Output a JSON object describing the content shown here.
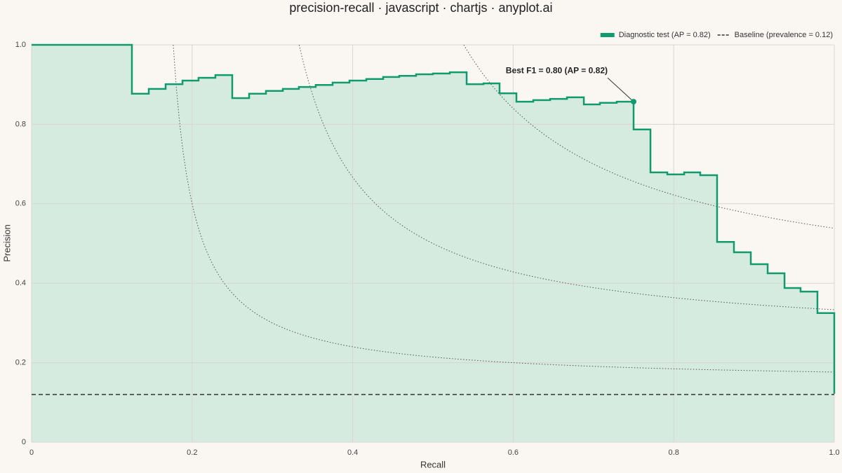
{
  "chart_data": {
    "type": "step",
    "title": "precision-recall · javascript · chartjs · anyplot.ai",
    "x_label": "Recall",
    "y_label": "Precision",
    "x": [
      0,
      0.125,
      0.146,
      0.167,
      0.188,
      0.208,
      0.229,
      0.25,
      0.271,
      0.292,
      0.313,
      0.333,
      0.354,
      0.375,
      0.396,
      0.417,
      0.438,
      0.458,
      0.479,
      0.5,
      0.521,
      0.542,
      0.563,
      0.583,
      0.604,
      0.625,
      0.646,
      0.667,
      0.688,
      0.708,
      0.729,
      0.75,
      0.771,
      0.792,
      0.813,
      0.833,
      0.854,
      0.875,
      0.896,
      0.917,
      0.938,
      0.958,
      0.979,
      1.0
    ],
    "series": [
      {
        "name": "Diagnostic test (AP = 0.82)",
        "color": "#129a6f",
        "fill": "#d5ebdf",
        "values": [
          1.0,
          0.877,
          0.889,
          0.901,
          0.91,
          0.917,
          0.924,
          0.866,
          0.877,
          0.884,
          0.889,
          0.894,
          0.899,
          0.905,
          0.91,
          0.914,
          0.919,
          0.922,
          0.926,
          0.928,
          0.931,
          0.901,
          0.903,
          0.878,
          0.857,
          0.861,
          0.864,
          0.868,
          0.85,
          0.854,
          0.857,
          0.787,
          0.679,
          0.674,
          0.679,
          0.672,
          0.504,
          0.478,
          0.448,
          0.425,
          0.388,
          0.379,
          0.325,
          0.122
        ]
      },
      {
        "name": "Baseline (prevalence = 0.12)",
        "color": "#333333",
        "value": 0.12
      }
    ],
    "iso_f1": [
      0.3,
      0.5,
      0.7
    ],
    "annotation": {
      "text": "Best F1 = 0.80 (AP = 0.82)",
      "x": 0.75,
      "y": 0.857
    },
    "xlim": [
      0,
      1
    ],
    "ylim": [
      0,
      1
    ],
    "xticks": [
      0,
      0.2,
      0.4,
      0.6,
      0.8,
      {
        "value": 1,
        "label": "1.0"
      }
    ],
    "yticks": [
      0,
      0.2,
      0.4,
      0.6,
      0.8,
      {
        "value": 1,
        "label": "1.0"
      }
    ],
    "grid": true,
    "legend": "top-right"
  }
}
